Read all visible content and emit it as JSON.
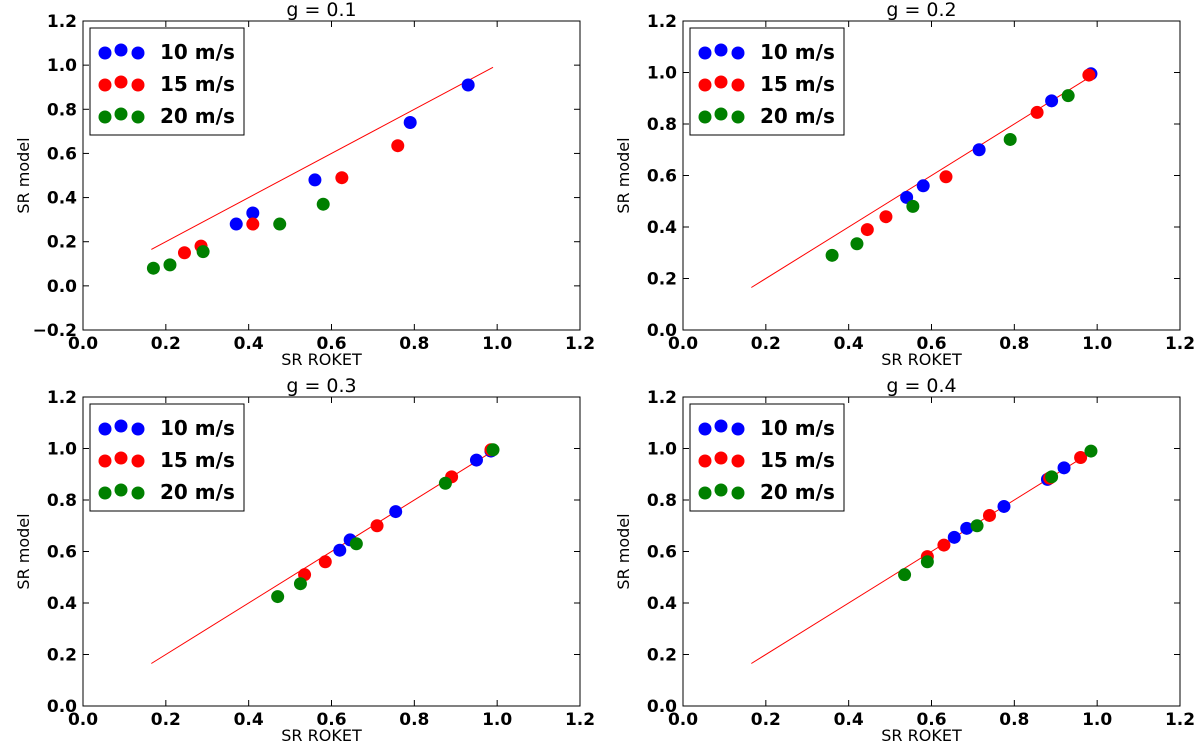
{
  "chart_data": [
    {
      "type": "scatter",
      "title": "g = 0.1",
      "xlabel": "SR ROKET",
      "ylabel": "SR model",
      "xlim": [
        0.0,
        1.2
      ],
      "ylim": [
        -0.2,
        1.2
      ],
      "xticks": [
        "0.0",
        "0.2",
        "0.4",
        "0.6",
        "0.8",
        "1.0",
        "1.2"
      ],
      "yticks": [
        "−0.2",
        "0.0",
        "0.2",
        "0.4",
        "0.6",
        "0.8",
        "1.0",
        "1.2"
      ],
      "reference_line": {
        "x": [
          0.165,
          0.99
        ],
        "y": [
          0.165,
          0.99
        ],
        "color": "#ff0000"
      },
      "legend_position": "upper-left",
      "series": [
        {
          "name": "10 m/s",
          "color": "#0000ff",
          "x": [
            0.37,
            0.41,
            0.56,
            0.79,
            0.93
          ],
          "y": [
            0.28,
            0.33,
            0.48,
            0.74,
            0.91
          ]
        },
        {
          "name": "15 m/s",
          "color": "#ff0000",
          "x": [
            0.245,
            0.285,
            0.41,
            0.625,
            0.76
          ],
          "y": [
            0.15,
            0.18,
            0.28,
            0.49,
            0.635
          ]
        },
        {
          "name": "20 m/s",
          "color": "#008000",
          "x": [
            0.17,
            0.21,
            0.29,
            0.475,
            0.58
          ],
          "y": [
            0.08,
            0.095,
            0.155,
            0.28,
            0.37
          ]
        }
      ]
    },
    {
      "type": "scatter",
      "title": "g = 0.2",
      "xlabel": "SR ROKET",
      "ylabel": "SR model",
      "xlim": [
        0.0,
        1.2
      ],
      "ylim": [
        0.0,
        1.2
      ],
      "xticks": [
        "0.0",
        "0.2",
        "0.4",
        "0.6",
        "0.8",
        "1.0",
        "1.2"
      ],
      "yticks": [
        "0.0",
        "0.2",
        "0.4",
        "0.6",
        "0.8",
        "1.0",
        "1.2"
      ],
      "reference_line": {
        "x": [
          0.165,
          0.99
        ],
        "y": [
          0.165,
          0.99
        ],
        "color": "#ff0000"
      },
      "legend_position": "upper-left",
      "series": [
        {
          "name": "10 m/s",
          "color": "#0000ff",
          "x": [
            0.54,
            0.58,
            0.715,
            0.89,
            0.985
          ],
          "y": [
            0.515,
            0.56,
            0.7,
            0.89,
            0.995
          ]
        },
        {
          "name": "15 m/s",
          "color": "#ff0000",
          "x": [
            0.445,
            0.49,
            0.635,
            0.855,
            0.98
          ],
          "y": [
            0.39,
            0.44,
            0.595,
            0.845,
            0.99
          ]
        },
        {
          "name": "20 m/s",
          "color": "#008000",
          "x": [
            0.36,
            0.42,
            0.555,
            0.79,
            0.93
          ],
          "y": [
            0.29,
            0.335,
            0.48,
            0.74,
            0.91
          ]
        }
      ]
    },
    {
      "type": "scatter",
      "title": "g = 0.3",
      "xlabel": "SR ROKET",
      "ylabel": "SR model",
      "xlim": [
        0.0,
        1.2
      ],
      "ylim": [
        0.0,
        1.2
      ],
      "xticks": [
        "0.0",
        "0.2",
        "0.4",
        "0.6",
        "0.8",
        "1.0",
        "1.2"
      ],
      "yticks": [
        "0.0",
        "0.2",
        "0.4",
        "0.6",
        "0.8",
        "1.0",
        "1.2"
      ],
      "reference_line": {
        "x": [
          0.165,
          0.99
        ],
        "y": [
          0.165,
          0.99
        ],
        "color": "#ff0000"
      },
      "legend_position": "upper-left",
      "series": [
        {
          "name": "10 m/s",
          "color": "#0000ff",
          "x": [
            0.62,
            0.645,
            0.755,
            0.95,
            0.985
          ],
          "y": [
            0.605,
            0.645,
            0.755,
            0.955,
            0.99
          ]
        },
        {
          "name": "15 m/s",
          "color": "#ff0000",
          "x": [
            0.535,
            0.585,
            0.71,
            0.89,
            0.985
          ],
          "y": [
            0.51,
            0.56,
            0.7,
            0.89,
            0.995
          ]
        },
        {
          "name": "20 m/s",
          "color": "#008000",
          "x": [
            0.47,
            0.525,
            0.66,
            0.875,
            0.99
          ],
          "y": [
            0.425,
            0.475,
            0.63,
            0.865,
            0.995
          ]
        }
      ]
    },
    {
      "type": "scatter",
      "title": "g = 0.4",
      "xlabel": "SR ROKET",
      "ylabel": "SR model",
      "xlim": [
        0.0,
        1.2
      ],
      "ylim": [
        0.0,
        1.2
      ],
      "xticks": [
        "0.0",
        "0.2",
        "0.4",
        "0.6",
        "0.8",
        "1.0",
        "1.2"
      ],
      "yticks": [
        "0.0",
        "0.2",
        "0.4",
        "0.6",
        "0.8",
        "1.0",
        "1.2"
      ],
      "reference_line": {
        "x": [
          0.165,
          0.99
        ],
        "y": [
          0.165,
          0.99
        ],
        "color": "#ff0000"
      },
      "legend_position": "upper-left",
      "series": [
        {
          "name": "10 m/s",
          "color": "#0000ff",
          "x": [
            0.655,
            0.685,
            0.775,
            0.88,
            0.92
          ],
          "y": [
            0.655,
            0.69,
            0.775,
            0.88,
            0.925
          ]
        },
        {
          "name": "15 m/s",
          "color": "#ff0000",
          "x": [
            0.59,
            0.63,
            0.74,
            0.885,
            0.96
          ],
          "y": [
            0.58,
            0.625,
            0.74,
            0.885,
            0.965
          ]
        },
        {
          "name": "20 m/s",
          "color": "#008000",
          "x": [
            0.535,
            0.59,
            0.71,
            0.89,
            0.985
          ],
          "y": [
            0.51,
            0.56,
            0.7,
            0.89,
            0.99
          ]
        }
      ]
    }
  ]
}
